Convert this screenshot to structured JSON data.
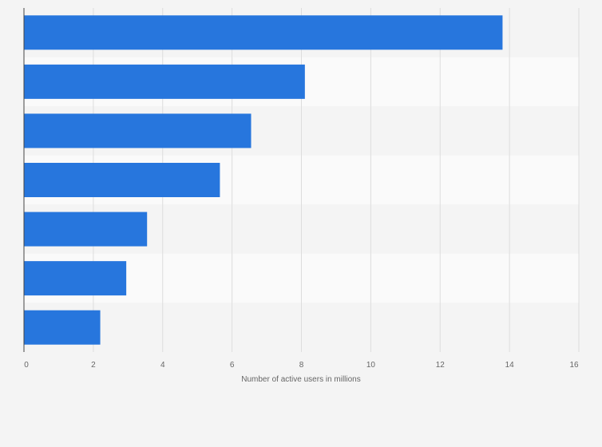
{
  "chart_data": {
    "type": "bar",
    "orientation": "horizontal",
    "title": "",
    "xlabel": "Number of active users in millions",
    "ylabel": "",
    "categories": [
      "",
      "",
      "",
      "",
      "",
      "",
      ""
    ],
    "values": [
      13.8,
      8.1,
      6.55,
      5.65,
      3.55,
      2.95,
      2.2
    ],
    "xlim": [
      0,
      16
    ],
    "xticks": [
      0,
      2,
      4,
      6,
      8,
      10,
      12,
      14,
      16
    ],
    "xtick_labels": [
      "0",
      "2",
      "4",
      "6",
      "8",
      "10",
      "12",
      "14",
      "16"
    ],
    "grid": true,
    "legend": "none"
  },
  "colors": {
    "bar": "#2776dd",
    "page_background": "#f4f4f4",
    "band_light": "#fafafa",
    "band_dark": "#f4f4f4",
    "grid": "#dddddd",
    "axis": "#444444",
    "tick_text": "#666666"
  }
}
